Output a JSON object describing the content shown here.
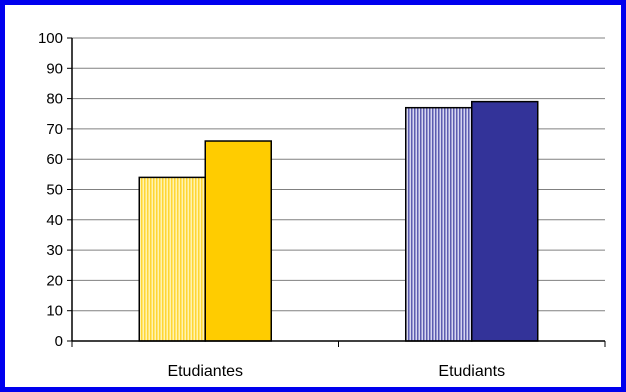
{
  "chart_data": {
    "type": "bar",
    "title": "",
    "xlabel": "",
    "ylabel": "",
    "ylim": [
      0,
      100
    ],
    "yticks": [
      "0",
      "10",
      "20",
      "30",
      "40",
      "50",
      "60",
      "70",
      "80",
      "90",
      "100"
    ],
    "grid": true,
    "legend": "none",
    "groups": [
      {
        "label": "Etudiantes",
        "bars": [
          {
            "value": 54,
            "color": "#ffe680",
            "pattern": "vertical-stripes"
          },
          {
            "value": 66,
            "color": "#ffcc00",
            "pattern": "solid"
          }
        ]
      },
      {
        "label": "Etudiants",
        "bars": [
          {
            "value": 77,
            "color": "#9a9ad2",
            "pattern": "vertical-stripes"
          },
          {
            "value": 79,
            "color": "#333399",
            "pattern": "solid"
          }
        ]
      }
    ]
  },
  "frame": {
    "border_color": "#0000ee"
  }
}
